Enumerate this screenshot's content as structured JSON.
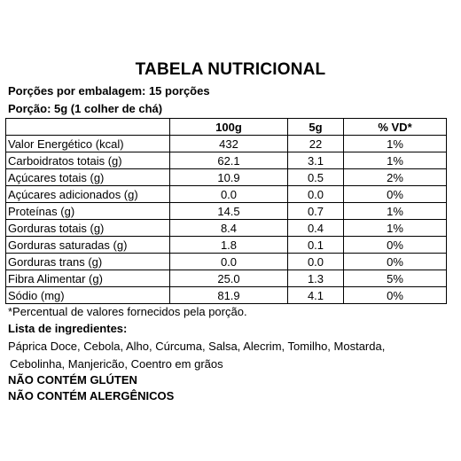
{
  "title": "TABELA NUTRICIONAL",
  "servings_per_package": "Porções por embalagem: 15 porções",
  "serving_size": "Porção: 5g (1 colher de chá)",
  "table": {
    "headers": [
      "",
      "100g",
      "5g",
      "% VD*"
    ],
    "rows": [
      [
        "Valor Energético (kcal)",
        "432",
        "22",
        "1%"
      ],
      [
        "Carboidratos totais (g)",
        "62.1",
        "3.1",
        "1%"
      ],
      [
        "Açúcares totais (g)",
        "10.9",
        "0.5",
        "2%"
      ],
      [
        "Açúcares adicionados (g)",
        "0.0",
        "0.0",
        "0%"
      ],
      [
        "Proteínas (g)",
        "14.5",
        "0.7",
        "1%"
      ],
      [
        "Gorduras totais (g)",
        "8.4",
        "0.4",
        "1%"
      ],
      [
        "Gorduras saturadas (g)",
        "1.8",
        "0.1",
        "0%"
      ],
      [
        "Gorduras trans (g)",
        "0.0",
        "0.0",
        "0%"
      ],
      [
        "Fibra Alimentar (g)",
        "25.0",
        "1.3",
        "5%"
      ],
      [
        "Sódio (mg)",
        "81.9",
        "4.1",
        "0%"
      ]
    ]
  },
  "footnote": "*Percentual de valores fornecidos pela porção.",
  "ingredients": {
    "title": "Lista de ingredientes:",
    "line1": "Páprica Doce, Cebola, Alho, Cúrcuma, Salsa, Alecrim, Tomilho, Mostarda,",
    "line2": "Cebolinha, Manjericão, Coentro em grãos"
  },
  "gluten_notice": "NÃO CONTÉM GLÚTEN",
  "allergen_notice": "NÃO CONTÉM ALERGÊNICOS"
}
